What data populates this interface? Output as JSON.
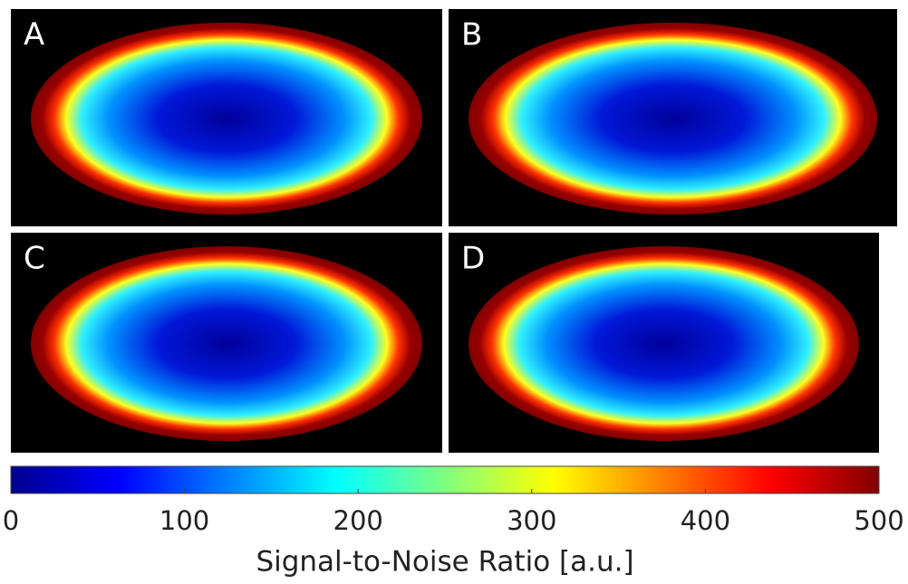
{
  "panels": [
    {
      "label": "A"
    },
    {
      "label": "B"
    },
    {
      "label": "C"
    },
    {
      "label": "D"
    }
  ],
  "chart_data": {
    "type": "colorbar",
    "colormap": "jet",
    "xlim": [
      0,
      500
    ],
    "xticks": [
      0,
      100,
      200,
      300,
      400,
      500
    ],
    "xlabel": "Signal-to-Noise Ratio [a.u.]"
  }
}
